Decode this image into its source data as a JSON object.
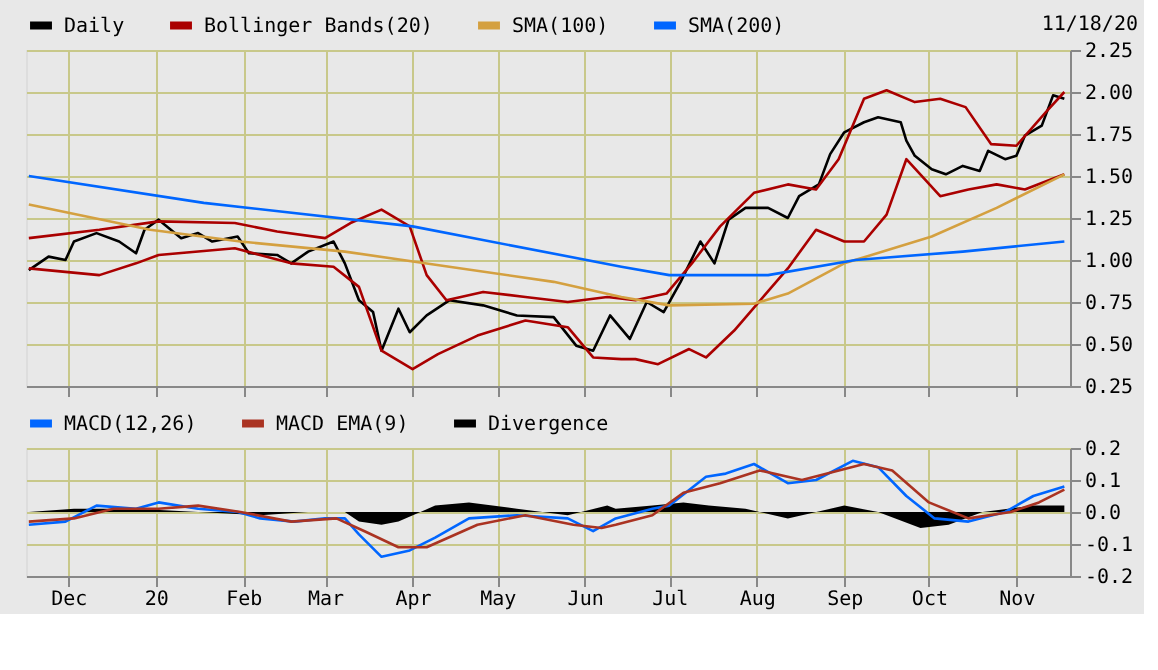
{
  "chart_data": [
    {
      "type": "line",
      "legend": "top",
      "grid": true,
      "tick_labels": "y",
      "annotations": [
        "11/18/20"
      ],
      "xlim": [
        "2019-11-16",
        "2020-11-20"
      ],
      "ylim": [
        0.25,
        2.25
      ],
      "yticks": [
        {
          "value": 0.25,
          "label": "0.25"
        },
        {
          "value": 0.5,
          "label": "0.50"
        },
        {
          "value": 0.75,
          "label": "0.75"
        },
        {
          "value": 1,
          "label": "1.00"
        },
        {
          "value": 1.25,
          "label": "1.25"
        },
        {
          "value": 1.5,
          "label": "1.50"
        },
        {
          "value": 1.75,
          "label": "1.75"
        },
        {
          "value": 2,
          "label": "2.00"
        },
        {
          "value": 2.25,
          "label": "2.25"
        }
      ],
      "series": [
        {
          "name": "Daily",
          "color": "#000000",
          "x": [
            "2019-11-17",
            "2019-11-24",
            "2019-11-30",
            "2019-12-03",
            "2019-12-11",
            "2019-12-19",
            "2019-12-25",
            "2019-12-28",
            "2020-01-02",
            "2020-01-10",
            "2020-01-16",
            "2020-01-21",
            "2020-01-30",
            "2020-02-03",
            "2020-02-13",
            "2020-02-18",
            "2020-02-24",
            "2020-03-04",
            "2020-03-08",
            "2020-03-13",
            "2020-03-18",
            "2020-03-21",
            "2020-03-27",
            "2020-03-31",
            "2020-04-06",
            "2020-04-14",
            "2020-04-26",
            "2020-05-08",
            "2020-05-21",
            "2020-05-29",
            "2020-06-04",
            "2020-06-10",
            "2020-06-17",
            "2020-06-23",
            "2020-06-29",
            "2020-07-05",
            "2020-07-12",
            "2020-07-17",
            "2020-07-22",
            "2020-07-28",
            "2020-08-05",
            "2020-08-12",
            "2020-08-16",
            "2020-08-23",
            "2020-08-27",
            "2020-09-01",
            "2020-09-08",
            "2020-09-13",
            "2020-09-21",
            "2020-09-23",
            "2020-09-26",
            "2020-10-02",
            "2020-10-07",
            "2020-10-13",
            "2020-10-19",
            "2020-10-22",
            "2020-10-28",
            "2020-11-01",
            "2020-11-04",
            "2020-11-10",
            "2020-11-14",
            "2020-11-18"
          ],
          "values": [
            0.94,
            1.02,
            1.0,
            1.11,
            1.16,
            1.11,
            1.04,
            1.18,
            1.24,
            1.13,
            1.16,
            1.11,
            1.14,
            1.04,
            1.03,
            0.98,
            1.05,
            1.11,
            0.98,
            0.76,
            0.69,
            0.46,
            0.71,
            0.57,
            0.67,
            0.76,
            0.73,
            0.67,
            0.66,
            0.49,
            0.46,
            0.67,
            0.53,
            0.75,
            0.69,
            0.87,
            1.11,
            0.98,
            1.24,
            1.31,
            1.31,
            1.25,
            1.38,
            1.45,
            1.63,
            1.76,
            1.82,
            1.85,
            1.82,
            1.71,
            1.62,
            1.54,
            1.51,
            1.56,
            1.53,
            1.65,
            1.6,
            1.62,
            1.74,
            1.8,
            1.98,
            1.96
          ]
        },
        {
          "name": "Bollinger Bands(20)",
          "color": "#aa0000",
          "x": [
            "2019-11-17",
            "2019-12-12",
            "2020-01-02",
            "2020-01-29",
            "2020-02-13",
            "2020-03-01",
            "2020-03-10",
            "2020-03-21",
            "2020-03-31",
            "2020-04-06",
            "2020-04-13",
            "2020-04-26",
            "2020-05-11",
            "2020-05-26",
            "2020-06-09",
            "2020-06-19",
            "2020-06-30",
            "2020-07-09",
            "2020-07-19",
            "2020-07-31",
            "2020-08-12",
            "2020-08-22",
            "2020-08-30",
            "2020-09-08",
            "2020-09-16",
            "2020-09-26",
            "2020-10-05",
            "2020-10-14",
            "2020-10-23",
            "2020-11-01",
            "2020-11-12",
            "2020-11-18"
          ],
          "values": [
            1.13,
            1.18,
            1.23,
            1.22,
            1.17,
            1.13,
            1.22,
            1.3,
            1.2,
            0.91,
            0.76,
            0.81,
            0.78,
            0.75,
            0.78,
            0.76,
            0.8,
            0.98,
            1.2,
            1.4,
            1.45,
            1.42,
            1.6,
            1.96,
            2.01,
            1.94,
            1.96,
            1.91,
            1.69,
            1.68,
            1.89,
            2.0
          ]
        },
        {
          "color": "#aa0000",
          "x": [
            "2019-11-17",
            "2019-12-12",
            "2019-12-25",
            "2020-01-02",
            "2020-01-29",
            "2020-02-18",
            "2020-03-04",
            "2020-03-13",
            "2020-03-21",
            "2020-04-01",
            "2020-04-10",
            "2020-04-24",
            "2020-05-11",
            "2020-05-26",
            "2020-06-04",
            "2020-06-14",
            "2020-06-19",
            "2020-06-27",
            "2020-07-08",
            "2020-07-14",
            "2020-07-24",
            "2020-08-12",
            "2020-08-22",
            "2020-09-01",
            "2020-09-08",
            "2020-09-16",
            "2020-09-23",
            "2020-10-05",
            "2020-10-15",
            "2020-10-25",
            "2020-11-04",
            "2020-11-18"
          ],
          "values": [
            0.95,
            0.91,
            0.98,
            1.03,
            1.07,
            0.98,
            0.96,
            0.84,
            0.46,
            0.35,
            0.44,
            0.55,
            0.64,
            0.6,
            0.42,
            0.41,
            0.41,
            0.38,
            0.47,
            0.42,
            0.58,
            0.95,
            1.18,
            1.11,
            1.11,
            1.27,
            1.6,
            1.38,
            1.42,
            1.45,
            1.42,
            1.51
          ]
        },
        {
          "name": "SMA(100)",
          "color": "#d4a040",
          "x": [
            "2019-11-17",
            "2019-12-30",
            "2020-01-31",
            "2020-03-08",
            "2020-04-14",
            "2020-05-21",
            "2020-06-14",
            "2020-07-01",
            "2020-07-31",
            "2020-08-12",
            "2020-09-01",
            "2020-10-02",
            "2020-10-25",
            "2020-11-18"
          ],
          "values": [
            1.33,
            1.18,
            1.11,
            1.05,
            0.96,
            0.87,
            0.78,
            0.73,
            0.74,
            0.8,
            0.98,
            1.14,
            1.31,
            1.51
          ]
        },
        {
          "name": "SMA(200)",
          "color": "#0066ff",
          "x": [
            "2019-11-17",
            "2020-01-18",
            "2020-04-01",
            "2020-06-14",
            "2020-07-01",
            "2020-08-05",
            "2020-09-05",
            "2020-10-13",
            "2020-11-18"
          ],
          "values": [
            1.5,
            1.34,
            1.2,
            0.96,
            0.91,
            0.91,
            1.0,
            1.05,
            1.11
          ]
        }
      ]
    },
    {
      "type": "line",
      "legend": "top",
      "grid": true,
      "xlim": [
        "2019-11-16",
        "2020-11-20"
      ],
      "xticks": [
        {
          "value": "2019-12-01",
          "label": "Dec"
        },
        {
          "value": "2020-01-01",
          "label": "20"
        },
        {
          "value": "2020-02-01",
          "label": "Feb"
        },
        {
          "value": "2020-03-01",
          "label": "Mar"
        },
        {
          "value": "2020-04-01",
          "label": "Apr"
        },
        {
          "value": "2020-05-01",
          "label": "May"
        },
        {
          "value": "2020-06-01",
          "label": "Jun"
        },
        {
          "value": "2020-07-01",
          "label": "Jul"
        },
        {
          "value": "2020-08-01",
          "label": "Aug"
        },
        {
          "value": "2020-09-01",
          "label": "Sep"
        },
        {
          "value": "2020-10-01",
          "label": "Oct"
        },
        {
          "value": "2020-11-01",
          "label": "Nov"
        }
      ],
      "ylim": [
        -0.2,
        0.2
      ],
      "yticks": [
        {
          "value": -0.2,
          "label": "-0.2"
        },
        {
          "value": -0.1,
          "label": "-0.1"
        },
        {
          "value": 0,
          "label": "0.0"
        },
        {
          "value": 0.1,
          "label": "0.1"
        },
        {
          "value": 0.2,
          "label": "0.2"
        }
      ],
      "series": [
        {
          "name": "MACD(12,26)",
          "color": "#0066ff",
          "x": [
            "2019-11-17",
            "2019-11-30",
            "2019-12-11",
            "2019-12-25",
            "2020-01-02",
            "2020-01-16",
            "2020-01-30",
            "2020-02-07",
            "2020-02-19",
            "2020-03-01",
            "2020-03-08",
            "2020-03-13",
            "2020-03-21",
            "2020-03-31",
            "2020-04-09",
            "2020-04-21",
            "2020-05-08",
            "2020-05-26",
            "2020-06-04",
            "2020-06-12",
            "2020-06-25",
            "2020-07-01",
            "2020-07-14",
            "2020-07-21",
            "2020-07-31",
            "2020-08-12",
            "2020-08-22",
            "2020-09-04",
            "2020-09-13",
            "2020-09-23",
            "2020-10-03",
            "2020-10-15",
            "2020-10-28",
            "2020-11-07",
            "2020-11-18"
          ],
          "values": [
            -0.04,
            -0.03,
            0.02,
            0.01,
            0.03,
            0.01,
            0.0,
            -0.02,
            -0.03,
            -0.02,
            -0.02,
            -0.07,
            -0.14,
            -0.12,
            -0.08,
            -0.02,
            -0.01,
            -0.02,
            -0.06,
            -0.02,
            0.01,
            0.02,
            0.11,
            0.12,
            0.15,
            0.09,
            0.1,
            0.16,
            0.14,
            0.05,
            -0.02,
            -0.03,
            0.0,
            0.05,
            0.08
          ]
        },
        {
          "name": "MACD EMA(9)",
          "color": "#aa3322",
          "x": [
            "2019-11-17",
            "2019-12-03",
            "2019-12-17",
            "2020-01-02",
            "2020-01-16",
            "2020-01-31",
            "2020-02-18",
            "2020-03-05",
            "2020-03-15",
            "2020-03-27",
            "2020-04-06",
            "2020-04-24",
            "2020-05-11",
            "2020-05-28",
            "2020-06-07",
            "2020-06-12",
            "2020-06-25",
            "2020-07-06",
            "2020-07-19",
            "2020-08-02",
            "2020-08-17",
            "2020-09-08",
            "2020-09-18",
            "2020-10-01",
            "2020-10-15",
            "2020-10-30",
            "2020-11-09",
            "2020-11-18"
          ],
          "values": [
            -0.03,
            -0.02,
            0.01,
            0.01,
            0.02,
            0.0,
            -0.03,
            -0.02,
            -0.06,
            -0.11,
            -0.11,
            -0.04,
            -0.01,
            -0.04,
            -0.05,
            -0.04,
            -0.01,
            0.06,
            0.09,
            0.13,
            0.1,
            0.15,
            0.13,
            0.03,
            -0.02,
            0.0,
            0.03,
            0.07
          ]
        },
        {
          "name": "Divergence",
          "color": "#000000",
          "type": "area",
          "x": [
            "2019-11-17",
            "2019-12-03",
            "2019-12-25",
            "2020-01-16",
            "2020-02-07",
            "2020-02-24",
            "2020-03-08",
            "2020-03-13",
            "2020-03-21",
            "2020-03-27",
            "2020-04-09",
            "2020-04-21",
            "2020-05-08",
            "2020-05-26",
            "2020-06-09",
            "2020-06-12",
            "2020-06-25",
            "2020-07-06",
            "2020-07-15",
            "2020-07-28",
            "2020-08-12",
            "2020-09-01",
            "2020-09-13",
            "2020-09-28",
            "2020-10-08",
            "2020-10-20",
            "2020-11-07",
            "2020-11-18"
          ],
          "values": [
            0.0,
            0.01,
            0.01,
            0.0,
            -0.01,
            0.0,
            0.0,
            -0.03,
            -0.04,
            -0.03,
            0.02,
            0.03,
            0.01,
            -0.01,
            0.02,
            0.01,
            0.02,
            0.03,
            0.02,
            0.01,
            -0.02,
            0.02,
            0.0,
            -0.05,
            -0.04,
            0.0,
            0.02,
            0.02
          ]
        }
      ]
    }
  ]
}
